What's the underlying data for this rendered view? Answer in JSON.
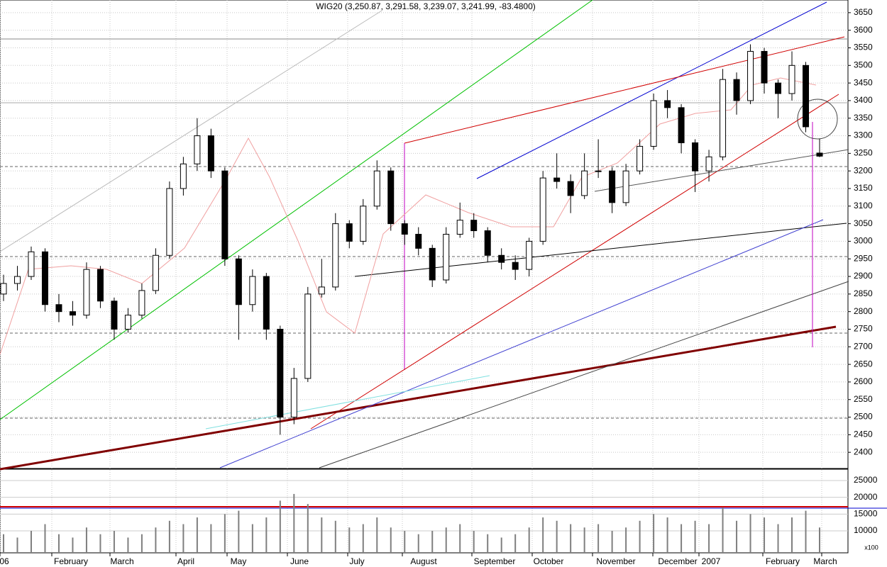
{
  "chart_data": {
    "type": "candlestick",
    "title": "WIG20 (3,250.87, 3,291.58, 3,239.07, 3,241.99, -83.4800)",
    "ylim": [
      2354,
      3686
    ],
    "yticks": [
      2400,
      2450,
      2500,
      2550,
      2600,
      2650,
      2700,
      2750,
      2800,
      2850,
      2900,
      2950,
      3000,
      3050,
      3100,
      3150,
      3200,
      3250,
      3300,
      3350,
      3400,
      3450,
      3500,
      3550,
      3600,
      3650
    ],
    "grid": true,
    "x_labels": [
      "06",
      "February",
      "March",
      "April",
      "May",
      "June",
      "July",
      "August",
      "September",
      "October",
      "November",
      "December",
      "2007",
      "February",
      "March"
    ],
    "ohlc": [
      [
        2850,
        2905,
        2830,
        2880
      ],
      [
        2880,
        2930,
        2860,
        2900
      ],
      [
        2900,
        2985,
        2890,
        2970
      ],
      [
        2970,
        2980,
        2800,
        2820
      ],
      [
        2820,
        2850,
        2770,
        2800
      ],
      [
        2800,
        2830,
        2760,
        2790
      ],
      [
        2790,
        2940,
        2780,
        2920
      ],
      [
        2920,
        2930,
        2810,
        2830
      ],
      [
        2830,
        2840,
        2720,
        2750
      ],
      [
        2750,
        2810,
        2740,
        2790
      ],
      [
        2790,
        2880,
        2780,
        2860
      ],
      [
        2860,
        2980,
        2850,
        2960
      ],
      [
        2960,
        3170,
        2950,
        3150
      ],
      [
        3150,
        3240,
        3130,
        3220
      ],
      [
        3220,
        3350,
        3200,
        3300
      ],
      [
        3300,
        3320,
        3180,
        3200
      ],
      [
        3200,
        3210,
        2930,
        2950
      ],
      [
        2950,
        2960,
        2720,
        2820
      ],
      [
        2820,
        2920,
        2800,
        2900
      ],
      [
        2900,
        2910,
        2720,
        2750
      ],
      [
        2750,
        2760,
        2450,
        2500
      ],
      [
        2500,
        2640,
        2480,
        2610
      ],
      [
        2610,
        2870,
        2600,
        2850
      ],
      [
        2850,
        2950,
        2840,
        2870
      ],
      [
        2870,
        3080,
        2860,
        3050
      ],
      [
        3050,
        3060,
        2980,
        3000
      ],
      [
        3000,
        3120,
        2990,
        3100
      ],
      [
        3100,
        3230,
        3090,
        3200
      ],
      [
        3200,
        3210,
        3030,
        3050
      ],
      [
        3050,
        3060,
        2990,
        3020
      ],
      [
        3020,
        3040,
        2960,
        2980
      ],
      [
        2980,
        2990,
        2870,
        2890
      ],
      [
        2890,
        3040,
        2880,
        3020
      ],
      [
        3020,
        3110,
        3010,
        3060
      ],
      [
        3060,
        3080,
        3010,
        3030
      ],
      [
        3030,
        3040,
        2940,
        2960
      ],
      [
        2960,
        2980,
        2920,
        2940
      ],
      [
        2940,
        2960,
        2890,
        2920
      ],
      [
        2920,
        3010,
        2900,
        3000
      ],
      [
        3000,
        3200,
        2990,
        3180
      ],
      [
        3180,
        3250,
        3150,
        3170
      ],
      [
        3170,
        3190,
        3080,
        3130
      ],
      [
        3130,
        3250,
        3120,
        3200
      ],
      [
        3200,
        3290,
        3180,
        3200
      ],
      [
        3200,
        3210,
        3080,
        3110
      ],
      [
        3110,
        3220,
        3100,
        3200
      ],
      [
        3200,
        3290,
        3190,
        3270
      ],
      [
        3270,
        3420,
        3260,
        3400
      ],
      [
        3400,
        3430,
        3350,
        3380
      ],
      [
        3380,
        3390,
        3250,
        3280
      ],
      [
        3280,
        3290,
        3140,
        3200
      ],
      [
        3200,
        3260,
        3170,
        3240
      ],
      [
        3240,
        3490,
        3230,
        3460
      ],
      [
        3460,
        3480,
        3360,
        3400
      ],
      [
        3400,
        3560,
        3390,
        3540
      ],
      [
        3540,
        3550,
        3420,
        3450
      ],
      [
        3450,
        3460,
        3350,
        3420
      ],
      [
        3420,
        3540,
        3400,
        3500
      ],
      [
        3500,
        3510,
        3310,
        3325.47
      ],
      [
        3250.87,
        3291.58,
        3239.07,
        3241.99
      ]
    ],
    "volume": [
      9000,
      8000,
      10000,
      12000,
      9000,
      8000,
      11000,
      9000,
      10000,
      8000,
      9000,
      11000,
      13000,
      12000,
      14000,
      12000,
      15000,
      16000,
      12000,
      14000,
      19000,
      21000,
      18000,
      14000,
      13000,
      11000,
      12000,
      14000,
      11000,
      10000,
      9000,
      10000,
      11000,
      12000,
      10000,
      9000,
      8000,
      9000,
      11000,
      14000,
      13000,
      12000,
      11000,
      12000,
      10000,
      11000,
      13000,
      15000,
      14000,
      12000,
      13000,
      12000,
      17000,
      13000,
      15000,
      14000,
      12000,
      14000,
      16000,
      11000
    ],
    "volume_color": "#7f7f7f",
    "volume_ylim": [
      3450,
      28380
    ],
    "volume_yticks": [
      10000,
      15000,
      20000,
      25000
    ],
    "volume_unit": "x100"
  }
}
